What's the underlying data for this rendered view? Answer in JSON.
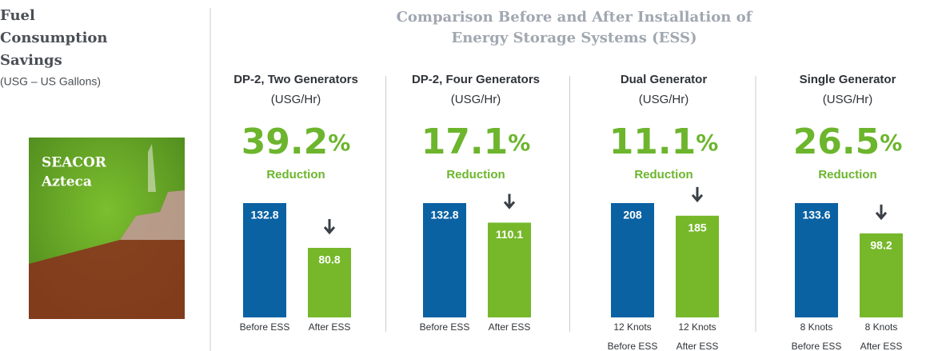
{
  "header": {
    "title_lines": [
      "Comparison Before and After Installation of",
      "Energy Storage Systems (ESS)"
    ]
  },
  "sidebar": {
    "title_lines": [
      "Fuel",
      "Consumption",
      "Savings"
    ],
    "subtitle": "(USG – US Gallons)",
    "image_caption_lines": [
      "SEACOR",
      "Azteca"
    ]
  },
  "chart_data": [
    {
      "type": "bar",
      "title": "DP-2, Two Generators",
      "subtitle": "(USG/Hr)",
      "reduction": 39.2,
      "reduction_unit": "%",
      "reduction_note": "Reduction",
      "categories": [
        "Before ESS",
        "After ESS"
      ],
      "values": [
        132.8,
        80.8
      ],
      "colors": [
        "#0b62a3",
        "#76b82a"
      ]
    },
    {
      "type": "bar",
      "title": "DP-2, Four Generators",
      "subtitle": "(USG/Hr)",
      "reduction": 17.1,
      "reduction_unit": "%",
      "reduction_note": "Reduction",
      "categories": [
        "Before ESS",
        "After ESS"
      ],
      "values": [
        132.8,
        110.1
      ],
      "colors": [
        "#0b62a3",
        "#76b82a"
      ]
    },
    {
      "type": "bar",
      "title": "Dual Generator",
      "subtitle": "(USG/Hr)",
      "reduction": 11.1,
      "reduction_unit": "%",
      "reduction_note": "Reduction",
      "category_notes": [
        "12 Knots",
        "12 Knots"
      ],
      "categories": [
        "Before ESS",
        "After ESS"
      ],
      "values": [
        208,
        185
      ],
      "colors": [
        "#0b62a3",
        "#76b82a"
      ]
    },
    {
      "type": "bar",
      "title": "Single Generator",
      "subtitle": "(USG/Hr)",
      "reduction": 26.5,
      "reduction_unit": "%",
      "reduction_note": "Reduction",
      "category_notes": [
        "8 Knots",
        "8 Knots"
      ],
      "categories": [
        "Before ESS",
        "After ESS"
      ],
      "values": [
        133.6,
        98.2
      ],
      "colors": [
        "#0b62a3",
        "#76b82a"
      ]
    }
  ]
}
